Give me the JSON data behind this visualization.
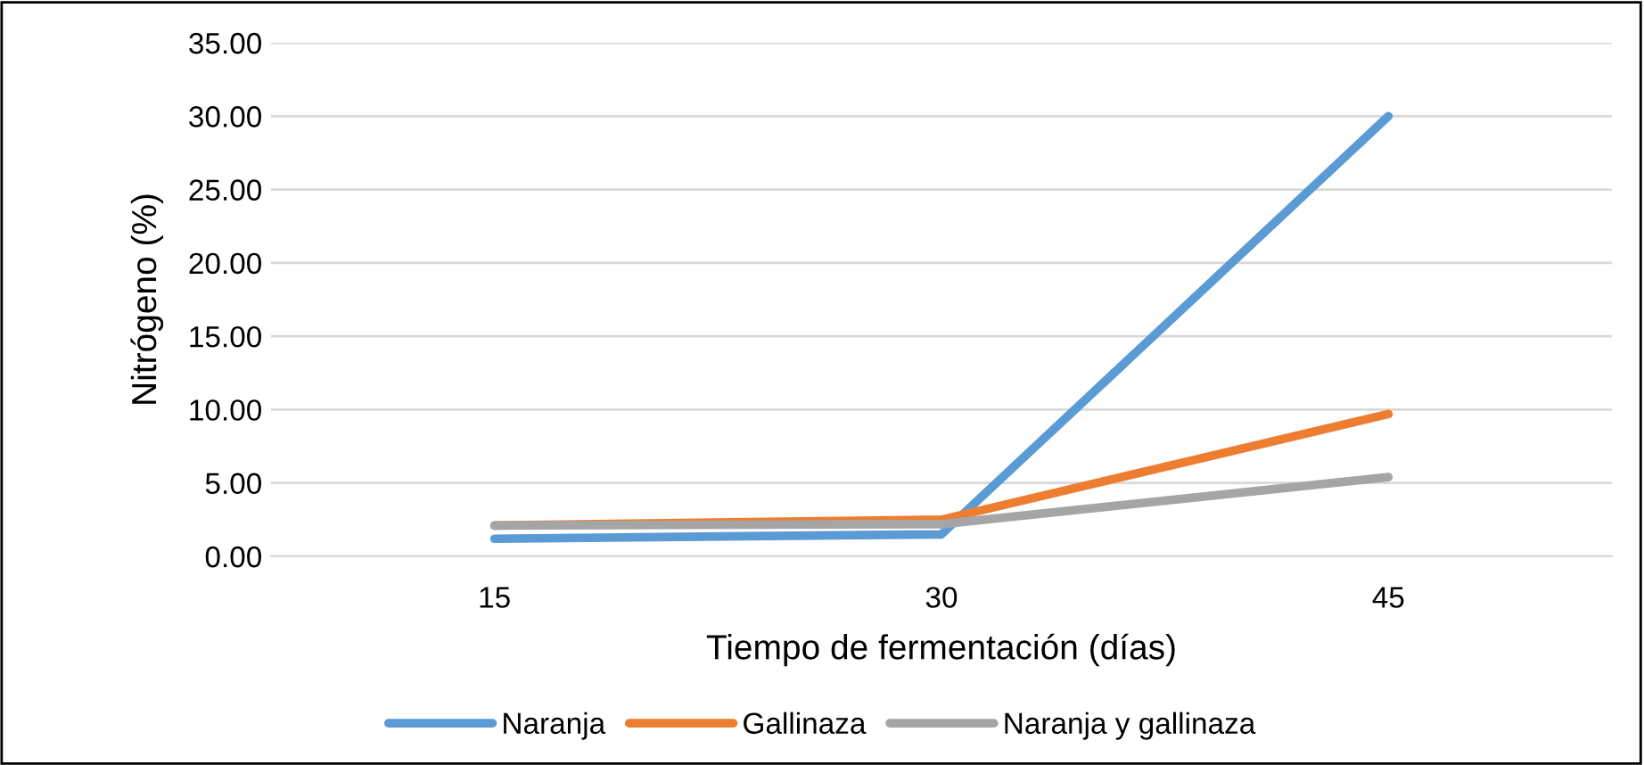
{
  "chart_data": {
    "type": "line",
    "xlabel": "Tiempo de fermentación (días)",
    "ylabel": "Nitrógeno (%)",
    "categories": [
      "15",
      "30",
      "45"
    ],
    "series": [
      {
        "name": "Naranja",
        "color": "#5b9bd5",
        "values": [
          1.2,
          1.5,
          30.0
        ]
      },
      {
        "name": "Gallinaza",
        "color": "#ed7d31",
        "values": [
          2.1,
          2.5,
          9.7
        ]
      },
      {
        "name": "Naranja y gallinaza",
        "color": "#a5a5a5",
        "values": [
          2.1,
          2.2,
          5.4
        ]
      }
    ],
    "ylim": [
      0,
      35
    ],
    "yticks": [
      {
        "value": 0,
        "label": "0.00"
      },
      {
        "value": 5,
        "label": "5.00"
      },
      {
        "value": 10,
        "label": "10.00"
      },
      {
        "value": 15,
        "label": "15.00"
      },
      {
        "value": 20,
        "label": "20.00"
      },
      {
        "value": 25,
        "label": "25.00"
      },
      {
        "value": 30,
        "label": "30.00"
      },
      {
        "value": 35,
        "label": "35.00"
      }
    ],
    "grid": "y",
    "legend": "bottom",
    "marker": "none",
    "line_style": "solid"
  }
}
